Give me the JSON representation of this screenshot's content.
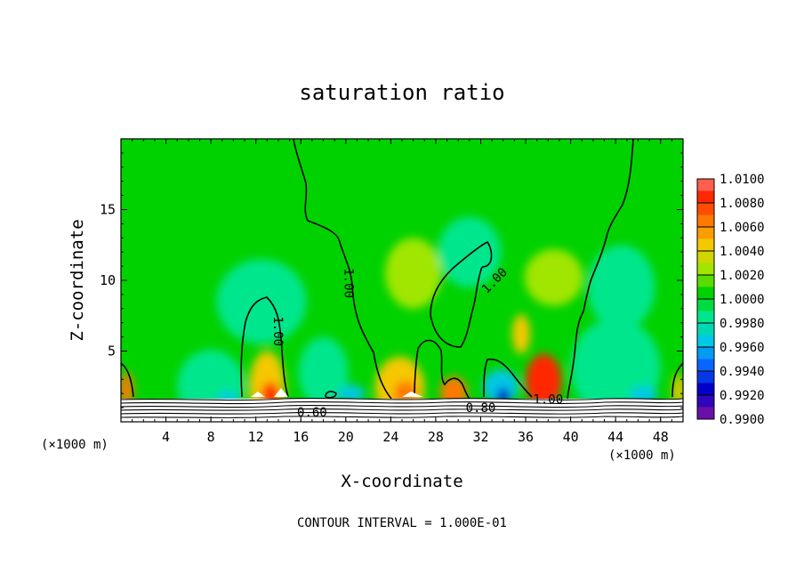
{
  "chart_data": {
    "type": "heatmap",
    "title": "saturation ratio",
    "xlabel": "X-coordinate",
    "ylabel": "Z-coordinate",
    "x_unit_left": "(×1000 m)",
    "x_unit_right": "(×1000 m)",
    "footer": "CONTOUR INTERVAL = 1.000E-01",
    "xlim": [
      0,
      50
    ],
    "ylim": [
      0,
      20
    ],
    "x_ticks": [
      4,
      8,
      12,
      16,
      20,
      24,
      28,
      32,
      36,
      40,
      44,
      48
    ],
    "x_tick_labels": [
      "4",
      "8",
      "12",
      "16",
      "20",
      "24",
      "28",
      "32",
      "36",
      "40",
      "44",
      "48"
    ],
    "y_ticks": [
      5,
      10,
      15
    ],
    "y_tick_labels": [
      "5",
      "10",
      "15"
    ],
    "colorbar": {
      "levels": [
        0.99,
        0.992,
        0.994,
        0.996,
        0.998,
        1.0,
        1.002,
        1.004,
        1.006,
        1.008,
        1.01
      ],
      "labels": [
        "0.9900",
        "0.9920",
        "0.9940",
        "0.9960",
        "0.9980",
        "1.0000",
        "1.0020",
        "1.0040",
        "1.0060",
        "1.0080",
        "1.0100"
      ],
      "colors": [
        "#6a0fa8",
        "#0000c8",
        "#0a64ff",
        "#00c8e6",
        "#00e68c",
        "#00d200",
        "#a0e600",
        "#f5c800",
        "#ff7800",
        "#ff2800",
        "#ff8c8c"
      ]
    },
    "contour_labels": [
      {
        "text": "1.00",
        "x": 14.0,
        "z": 6.4,
        "rotate": 90
      },
      {
        "text": "1.00",
        "x": 20.3,
        "z": 9.8,
        "rotate": 90
      },
      {
        "text": "1.00",
        "x": 33.2,
        "z": 10.0,
        "rotate": -45
      },
      {
        "text": "1.00",
        "x": 38.0,
        "z": 1.6,
        "rotate": 0
      },
      {
        "text": "0.60",
        "x": 17.0,
        "z": 0.7,
        "rotate": 0
      },
      {
        "text": "0.80",
        "x": 32.0,
        "z": 1.0,
        "rotate": 0
      }
    ],
    "field_blobs": [
      {
        "x": 13.0,
        "z": 2.4,
        "rx": 1.6,
        "rz": 2.6,
        "v": 1.004
      },
      {
        "x": 13.3,
        "z": 1.9,
        "rx": 0.8,
        "rz": 0.9,
        "v": 1.008
      },
      {
        "x": 24.8,
        "z": 2.4,
        "rx": 2.2,
        "rz": 2.2,
        "v": 1.004
      },
      {
        "x": 25.3,
        "z": 2.0,
        "rx": 1.0,
        "rz": 0.9,
        "v": 1.007
      },
      {
        "x": 29.6,
        "z": 2.1,
        "rx": 1.2,
        "rz": 1.1,
        "v": 1.006
      },
      {
        "x": 33.8,
        "z": 2.5,
        "rx": 1.6,
        "rz": 1.2,
        "v": 0.9955
      },
      {
        "x": 34.0,
        "z": 1.8,
        "rx": 0.6,
        "rz": 0.6,
        "v": 0.993
      },
      {
        "x": 37.6,
        "z": 2.9,
        "rx": 1.6,
        "rz": 1.9,
        "v": 1.008
      },
      {
        "x": 35.6,
        "z": 6.2,
        "rx": 0.8,
        "rz": 1.4,
        "v": 1.005
      },
      {
        "x": 0.5,
        "z": 2.3,
        "rx": 0.6,
        "rz": 1.2,
        "v": 1.006
      },
      {
        "x": 49.6,
        "z": 2.2,
        "rx": 0.5,
        "rz": 1.2,
        "v": 1.004
      },
      {
        "x": 18.0,
        "z": 3.5,
        "rx": 2.2,
        "rz": 2.5,
        "v": 0.9985
      },
      {
        "x": 44.0,
        "z": 3.8,
        "rx": 4.0,
        "rz": 3.5,
        "v": 0.9985
      },
      {
        "x": 46.5,
        "z": 1.9,
        "rx": 1.2,
        "rz": 0.6,
        "v": 0.9965
      },
      {
        "x": 20.5,
        "z": 2.0,
        "rx": 1.2,
        "rz": 0.6,
        "v": 0.9965
      },
      {
        "x": 8.0,
        "z": 2.6,
        "rx": 3.0,
        "rz": 2.5,
        "v": 0.9985
      },
      {
        "x": 9.5,
        "z": 1.7,
        "rx": 1.0,
        "rz": 0.4,
        "v": 0.9965
      },
      {
        "x": 31.0,
        "z": 12.0,
        "rx": 2.8,
        "rz": 2.5,
        "v": 0.9985
      },
      {
        "x": 26.0,
        "z": 10.5,
        "rx": 2.5,
        "rz": 2.5,
        "v": 1.0015
      },
      {
        "x": 38.5,
        "z": 10.2,
        "rx": 2.6,
        "rz": 2.0,
        "v": 1.0015
      },
      {
        "x": 12.5,
        "z": 8.5,
        "rx": 4.0,
        "rz": 3.0,
        "v": 0.9988
      },
      {
        "x": 44.5,
        "z": 9.5,
        "rx": 3.0,
        "rz": 3.0,
        "v": 0.9988
      }
    ]
  }
}
